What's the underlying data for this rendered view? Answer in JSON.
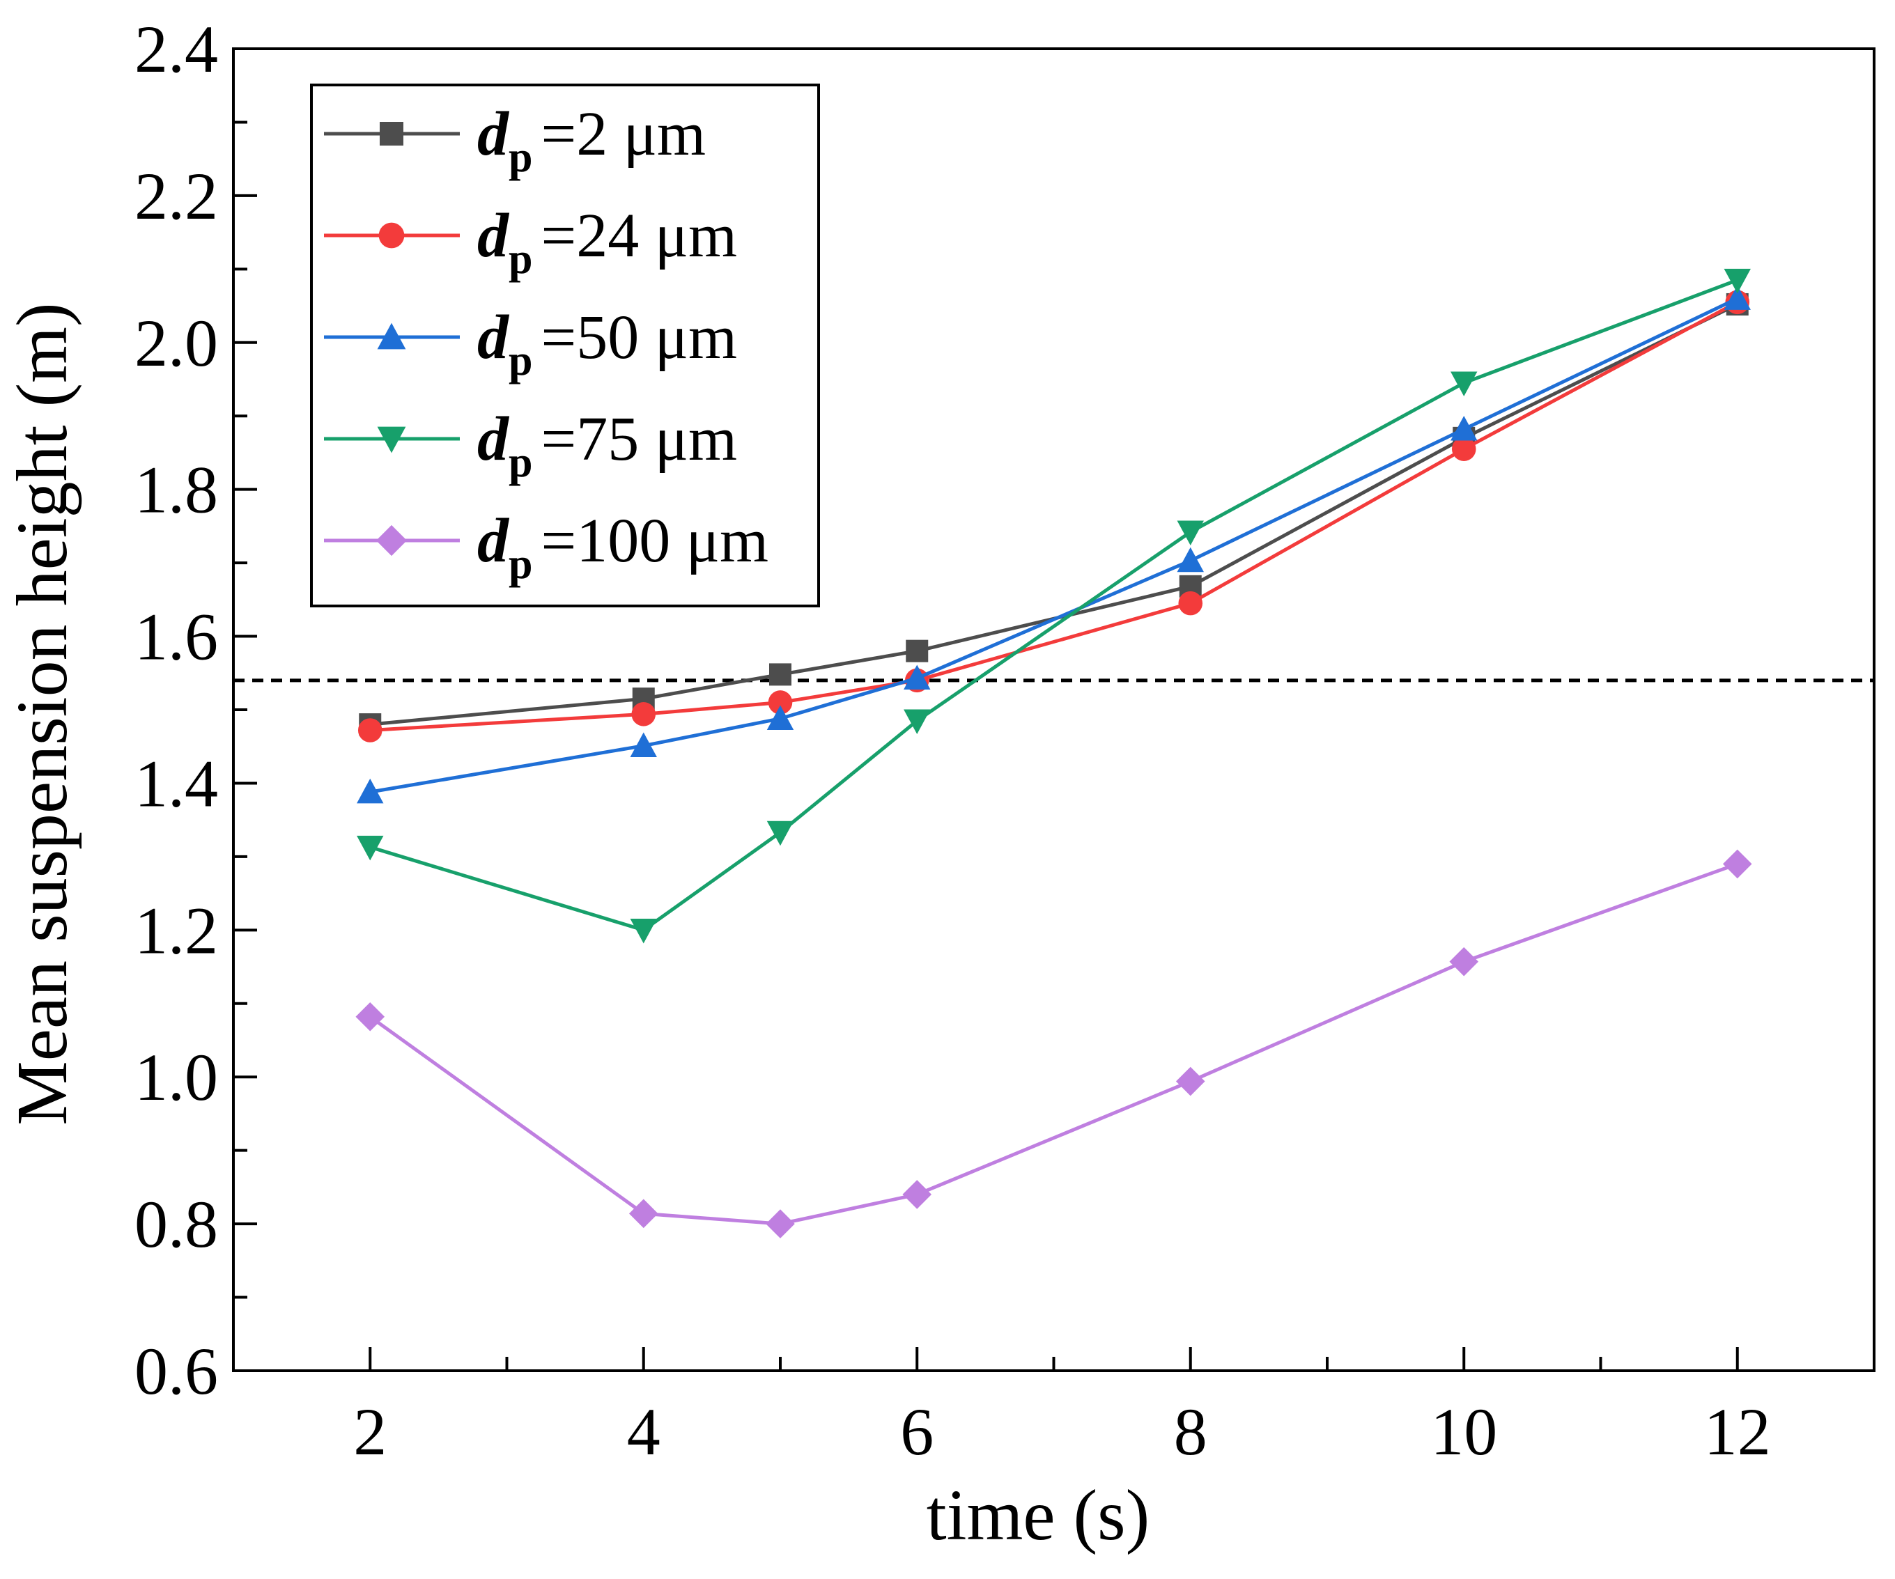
{
  "chart_data": {
    "type": "line",
    "title": "",
    "xlabel": "time (s)",
    "ylabel": "Mean suspension height (m)",
    "xlim": [
      1,
      13
    ],
    "ylim": [
      0.6,
      2.4
    ],
    "xticks": [
      2,
      4,
      6,
      8,
      10,
      12
    ],
    "xtick_labels": [
      "2",
      "4",
      "6",
      "8",
      "10",
      "12"
    ],
    "yticks": [
      0.6,
      0.8,
      1.0,
      1.2,
      1.4,
      1.6,
      1.8,
      2.0,
      2.2,
      2.4
    ],
    "ytick_labels": [
      "0.6",
      "0.8",
      "1.0",
      "1.2",
      "1.4",
      "1.6",
      "1.8",
      "2.0",
      "2.2",
      "2.4"
    ],
    "grid": false,
    "legend_position": "top-left",
    "reference_line": {
      "y": 1.54,
      "style": "dashed",
      "color": "#000000"
    },
    "x": [
      2,
      4,
      5,
      6,
      8,
      10,
      12
    ],
    "series": [
      {
        "name": "=2 μm",
        "legend_var": "d",
        "legend_sub": "p",
        "color": "#4d4d4d",
        "marker": "square",
        "values": [
          1.48,
          1.515,
          1.548,
          1.58,
          1.668,
          1.87,
          2.052
        ]
      },
      {
        "name": "=24 μm",
        "legend_var": "d",
        "legend_sub": "p",
        "color": "#f33b3b",
        "marker": "circle",
        "values": [
          1.472,
          1.494,
          1.51,
          1.54,
          1.645,
          1.855,
          2.055
        ]
      },
      {
        "name": "=50 μm",
        "legend_var": "d",
        "legend_sub": "p",
        "color": "#1f6fd6",
        "marker": "triangle-up",
        "values": [
          1.388,
          1.451,
          1.488,
          1.543,
          1.703,
          1.882,
          2.06
        ]
      },
      {
        "name": "=75 μm",
        "legend_var": "d",
        "legend_sub": "p",
        "color": "#17a06b",
        "marker": "triangle-down",
        "values": [
          1.313,
          1.2,
          1.333,
          1.485,
          1.742,
          1.945,
          2.085
        ]
      },
      {
        "name": "=100 μm",
        "legend_var": "d",
        "legend_sub": "p",
        "color": "#bf7fe0",
        "marker": "diamond",
        "values": [
          1.082,
          0.814,
          0.8,
          0.84,
          0.994,
          1.157,
          1.29
        ]
      }
    ]
  }
}
